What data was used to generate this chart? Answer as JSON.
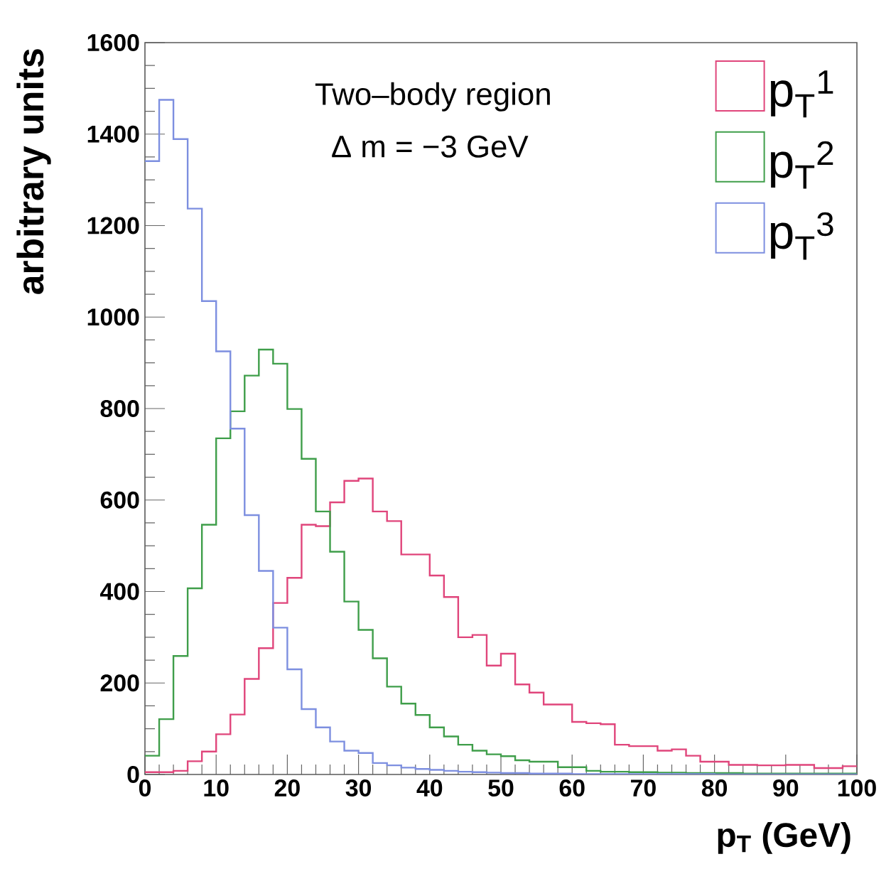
{
  "chart_data": {
    "type": "histogram",
    "xlabel": "p$_{T}$ (GeV)",
    "ylabel": "arbitrary units",
    "annotations": [
      "Two–body region",
      "Δ m = −3 GeV"
    ],
    "bins": [
      0,
      2,
      4,
      6,
      8,
      10,
      12,
      14,
      16,
      18,
      20,
      22,
      24,
      26,
      28,
      30,
      32,
      34,
      36,
      38,
      40,
      42,
      44,
      46,
      48,
      50,
      52,
      54,
      56,
      58,
      60,
      62,
      64,
      66,
      68,
      70,
      72,
      74,
      76,
      78,
      80,
      82,
      84,
      86,
      88,
      90,
      92,
      94,
      96,
      98,
      100
    ],
    "series": [
      {
        "name": "p$_{T}$$^{1}$",
        "color": "#e0457b",
        "values": [
          5,
          5,
          8,
          29,
          50,
          88,
          131,
          209,
          276,
          375,
          430,
          546,
          543,
          595,
          642,
          647,
          575,
          554,
          481,
          481,
          435,
          388,
          300,
          305,
          238,
          264,
          197,
          179,
          153,
          153,
          115,
          112,
          110,
          65,
          62,
          62,
          52,
          55,
          41,
          28,
          28,
          21,
          21,
          20,
          20,
          21,
          21,
          14,
          14,
          18
        ]
      },
      {
        "name": "p$_{T}$$^{2}$",
        "color": "#3f9e4a",
        "values": [
          41,
          121,
          259,
          407,
          546,
          735,
          794,
          872,
          929,
          898,
          799,
          690,
          575,
          487,
          378,
          316,
          254,
          192,
          155,
          130,
          103,
          83,
          65,
          52,
          44,
          40,
          31,
          28,
          28,
          16,
          16,
          8,
          6,
          6,
          5,
          5,
          4,
          4,
          3,
          3,
          3,
          3,
          2,
          2,
          2,
          2,
          2,
          2,
          2,
          2
        ]
      },
      {
        "name": "p$_{T}$$^{3}$",
        "color": "#7d8fe0",
        "values": [
          1341,
          1475,
          1389,
          1237,
          1035,
          925,
          756,
          567,
          445,
          321,
          230,
          143,
          103,
          72,
          52,
          47,
          25,
          20,
          15,
          12,
          10,
          8,
          6,
          5,
          4,
          3,
          3,
          2,
          2,
          2,
          1,
          1,
          1,
          1,
          1,
          1,
          1,
          1,
          1,
          1,
          0,
          0,
          0,
          0,
          0,
          0,
          0,
          0,
          0,
          0
        ]
      }
    ],
    "xlim": [
      0,
      100
    ],
    "ylim": [
      0,
      1600
    ],
    "xticks": [
      0,
      10,
      20,
      30,
      40,
      50,
      60,
      70,
      80,
      90,
      100
    ],
    "yticks": [
      0,
      200,
      400,
      600,
      800,
      1000,
      1200,
      1400,
      1600
    ],
    "legend": "top right"
  }
}
